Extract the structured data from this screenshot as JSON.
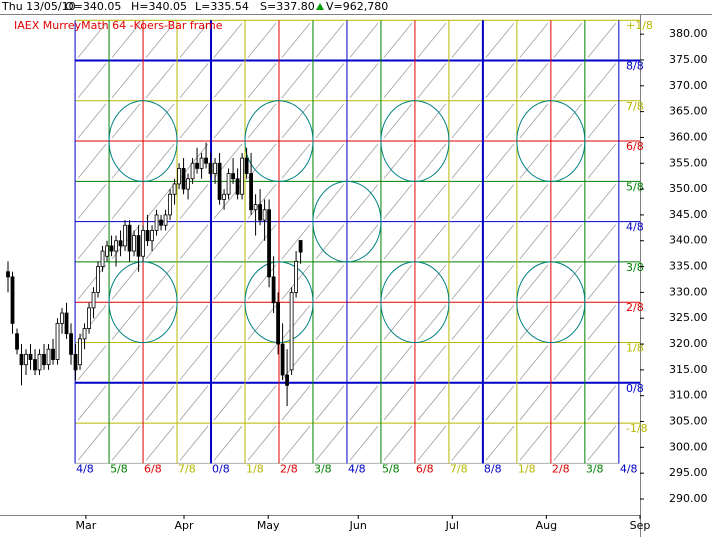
{
  "chart_data": {
    "type": "candlestick",
    "title": "IAEX MurreyMath 64 -Koers-Bar frame",
    "info": [
      "Thu 13/05/10",
      "O=340.05",
      "H=340.05",
      "L=335.54",
      "S=337.80",
      "V=962,780"
    ],
    "x": [
      0,
      1,
      2,
      3,
      4,
      5,
      6,
      7,
      8,
      9,
      10,
      11,
      12,
      13,
      14,
      15,
      16,
      17,
      18,
      19,
      20,
      21,
      22,
      23,
      24,
      25,
      26,
      27,
      28,
      29,
      30,
      31,
      32,
      33,
      34,
      35,
      36,
      37,
      38,
      39,
      40,
      41,
      42,
      43,
      44,
      45,
      46,
      47,
      48,
      49,
      50,
      51,
      52,
      53,
      54,
      55,
      56,
      57,
      58,
      59,
      60,
      61,
      62,
      63,
      64,
      65
    ],
    "open": [
      334,
      333,
      322,
      318,
      316,
      318,
      317,
      315,
      318,
      316,
      319,
      317,
      324,
      326,
      322,
      318,
      316,
      321,
      323,
      327,
      330,
      335,
      337,
      339,
      338,
      340,
      339,
      343,
      338,
      341,
      337,
      342,
      340,
      342,
      344,
      343,
      345,
      349,
      351,
      354,
      350,
      352,
      355,
      354,
      356,
      355,
      353,
      355,
      348,
      349,
      353,
      352,
      349,
      356,
      353,
      346,
      347,
      344,
      346,
      333,
      328,
      320,
      314,
      315,
      330,
      340.05
    ],
    "high": [
      336,
      334,
      323,
      320,
      319,
      320,
      319,
      319,
      320,
      320,
      321,
      325,
      327,
      328,
      324,
      320,
      322,
      324,
      328,
      331,
      336,
      339,
      340,
      341,
      341,
      342,
      344,
      344,
      342,
      343,
      343,
      345,
      343,
      346,
      345,
      346,
      350,
      352,
      355,
      356,
      353,
      356,
      358,
      357,
      359,
      357,
      356,
      357,
      350,
      354,
      356,
      354,
      357,
      358,
      357,
      349,
      350,
      348,
      348,
      337,
      330,
      324,
      319,
      331,
      338,
      340.05
    ],
    "low": [
      330,
      322,
      318,
      312,
      314,
      315,
      314,
      314,
      315,
      315,
      316,
      316,
      322,
      321,
      316,
      313,
      315,
      319,
      322,
      325,
      329,
      334,
      336,
      337,
      335,
      337,
      338,
      336,
      337,
      334,
      336,
      339,
      338,
      341,
      342,
      342,
      344,
      347,
      350,
      349,
      348,
      351,
      353,
      352,
      354,
      352,
      351,
      347,
      346,
      348,
      351,
      348,
      348,
      352,
      345,
      341,
      343,
      340,
      331,
      326,
      318,
      313,
      308,
      314,
      329,
      335.54
    ],
    "close": [
      333,
      324,
      319,
      316,
      318,
      317,
      315,
      318,
      316,
      319,
      317,
      324,
      326,
      322,
      318,
      315,
      321,
      323,
      327,
      330,
      335,
      338,
      339,
      338,
      340,
      339,
      343,
      338,
      341,
      337,
      342,
      340,
      342,
      345,
      343,
      345,
      349,
      351,
      354,
      350,
      352,
      355,
      354,
      356,
      355,
      353,
      355,
      348,
      349,
      353,
      352,
      349,
      356,
      353,
      346,
      347,
      344,
      346,
      333,
      328,
      320,
      314,
      312,
      330,
      336,
      337.8
    ],
    "xlim": [
      -1.78,
      140.4
    ],
    "xticks": [
      {
        "value": 17.3,
        "label": "Mar"
      },
      {
        "value": 39.1,
        "label": "Apr"
      },
      {
        "value": 57.8,
        "label": "May"
      },
      {
        "value": 77.8,
        "label": "Jun"
      },
      {
        "value": 98.7,
        "label": "Jul"
      },
      {
        "value": 119.6,
        "label": "Aug"
      },
      {
        "value": 140.4,
        "label": "Sep"
      }
    ],
    "ylim": [
      286.9,
      383.9
    ],
    "yticks": [
      {
        "value": 290,
        "label": "290.00"
      },
      {
        "value": 295,
        "label": "295.00"
      },
      {
        "value": 300,
        "label": "300.00"
      },
      {
        "value": 305,
        "label": "305.00"
      },
      {
        "value": 310,
        "label": "310.00"
      },
      {
        "value": 315,
        "label": "315.00"
      },
      {
        "value": 320,
        "label": "320.00"
      },
      {
        "value": 325,
        "label": "325.00"
      },
      {
        "value": 330,
        "label": "330.00"
      },
      {
        "value": 335,
        "label": "335.00"
      },
      {
        "value": 340,
        "label": "340.00"
      },
      {
        "value": 345,
        "label": "345.00"
      },
      {
        "value": 350,
        "label": "350.00"
      },
      {
        "value": 355,
        "label": "355.00"
      },
      {
        "value": 360,
        "label": "360.00"
      },
      {
        "value": 365,
        "label": "365.00"
      },
      {
        "value": 370,
        "label": "370.00"
      },
      {
        "value": 375,
        "label": "375.00"
      },
      {
        "value": 380,
        "label": "380.00"
      }
    ],
    "levels": [
      {
        "value": 304.7,
        "label": "-1/8",
        "color": "#b8b800"
      },
      {
        "value": 312.5,
        "label": "0/8",
        "color": "#0000c8"
      },
      {
        "value": 320.3,
        "label": "1/8",
        "color": "#b8b800"
      },
      {
        "value": 328.1,
        "label": "2/8",
        "color": "#e00000"
      },
      {
        "value": 335.9,
        "label": "3/8",
        "color": "#008000"
      },
      {
        "value": 343.7,
        "label": "4/8",
        "color": "#0000c8"
      },
      {
        "value": 351.5,
        "label": "5/8",
        "color": "#008000"
      },
      {
        "value": 359.3,
        "label": "6/8",
        "color": "#e00000"
      },
      {
        "value": 367.1,
        "label": "7/8",
        "color": "#b8b800"
      },
      {
        "value": 374.9,
        "label": "8/8",
        "color": "#0000c8"
      },
      {
        "value": 382.7,
        "label": "+1/8",
        "color": "#b8b800"
      }
    ],
    "time_levels": [
      {
        "value": 14.9,
        "label": "4/8",
        "color": "#0000c8"
      },
      {
        "value": 22.45,
        "label": "5/8",
        "color": "#008000"
      },
      {
        "value": 30.0,
        "label": "6/8",
        "color": "#e00000"
      },
      {
        "value": 37.55,
        "label": "7/8",
        "color": "#b8b800"
      },
      {
        "value": 45.1,
        "label": "0/8",
        "color": "#0000c8"
      },
      {
        "value": 52.65,
        "label": "1/8",
        "color": "#b8b800"
      },
      {
        "value": 60.2,
        "label": "2/8",
        "color": "#e00000"
      },
      {
        "value": 67.75,
        "label": "3/8",
        "color": "#008000"
      },
      {
        "value": 75.3,
        "label": "4/8",
        "color": "#0000c8"
      },
      {
        "value": 82.85,
        "label": "5/8",
        "color": "#008000"
      },
      {
        "value": 90.4,
        "label": "6/8",
        "color": "#e00000"
      },
      {
        "value": 97.95,
        "label": "7/8",
        "color": "#b8b800"
      },
      {
        "value": 105.5,
        "label": "8/8",
        "color": "#0000c8"
      },
      {
        "value": 113.05,
        "label": "1/8",
        "color": "#b8b800"
      },
      {
        "value": 120.6,
        "label": "2/8",
        "color": "#e00000"
      },
      {
        "value": 128.15,
        "label": "3/8",
        "color": "#008000"
      },
      {
        "value": 135.7,
        "label": "4/8",
        "color": "#0000c8"
      }
    ],
    "up_color": "#ffffff",
    "down_color": "#000000"
  }
}
